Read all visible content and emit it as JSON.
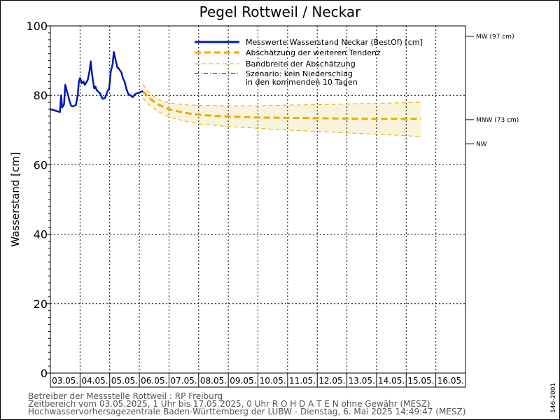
{
  "chart_data": {
    "type": "line",
    "title": "Pegel Rottweil / Neckar",
    "ylabel": "Wasserstand  [cm]",
    "ylim": [
      0,
      100
    ],
    "yticks": [
      0,
      20,
      40,
      60,
      80,
      100
    ],
    "xlim": [
      3.0,
      17.0
    ],
    "xticks": [
      "03.05.",
      "04.05.",
      "05.05.",
      "06.05.",
      "07.05.",
      "08.05.",
      "09.05.",
      "10.05.",
      "11.05.",
      "12.05.",
      "13.05.",
      "14.05.",
      "15.05.",
      "16.05."
    ],
    "grid": true,
    "legend_position": "top-right",
    "legend": [
      {
        "label": "Messwerte Wasserstand Neckar  (BestOf)  [cm]",
        "style": "solid",
        "color": "#0018b4"
      },
      {
        "label": "Abschätzung der weiteren Tendenz",
        "style": "dashed-thick",
        "color": "#f0a800"
      },
      {
        "label": "Bandbreite der Abschätzung",
        "style": "dashed-thin",
        "color": "#f0a800"
      },
      {
        "label": "Szenario: kein Niederschlag",
        "style": "dash-dot",
        "color": "#000000"
      },
      {
        "label": "in den kommenden 10 Tagen",
        "style": "none",
        "color": "#000000"
      }
    ],
    "reference_levels": [
      {
        "label": "MW (97 cm)",
        "value": 97
      },
      {
        "label": "MNW (73 cm)",
        "value": 73
      },
      {
        "label": "NW",
        "value": 66
      }
    ],
    "series": [
      {
        "name": "Messwerte Wasserstand Neckar  (BestOf)  [cm]",
        "color": "#0018b4",
        "x": [
          3.0,
          3.2,
          3.32,
          3.36,
          3.4,
          3.44,
          3.46,
          3.5,
          3.52,
          3.56,
          3.6,
          3.64,
          3.7,
          3.76,
          3.8,
          3.86,
          3.92,
          3.96,
          4.0,
          4.06,
          4.12,
          4.16,
          4.2,
          4.26,
          4.32,
          4.36,
          4.4,
          4.44,
          4.48,
          4.52,
          4.56,
          4.62,
          4.68,
          4.76,
          4.84,
          4.92,
          4.98,
          5.04,
          5.1,
          5.14,
          5.18,
          5.22,
          5.26,
          5.3,
          5.36,
          5.4,
          5.44,
          5.5,
          5.56,
          5.62,
          5.7,
          5.78,
          5.84,
          5.92,
          6.0,
          6.06,
          6.12
        ],
        "y": [
          76.0,
          75.5,
          75.2,
          80.0,
          76.5,
          77.0,
          77.5,
          83.0,
          82.5,
          81.0,
          80.0,
          78.5,
          77.0,
          76.8,
          77.0,
          77.2,
          80.0,
          84.0,
          85.0,
          83.5,
          84.0,
          83.0,
          83.5,
          84.5,
          87.0,
          89.8,
          86.5,
          84.0,
          82.0,
          82.5,
          81.5,
          81.0,
          80.5,
          79.0,
          79.2,
          81.0,
          82.0,
          87.0,
          89.0,
          92.5,
          91.0,
          89.5,
          88.0,
          87.8,
          87.0,
          86.5,
          85.0,
          84.0,
          82.0,
          80.5,
          80.0,
          79.5,
          80.2,
          80.6,
          80.8,
          81.0,
          81.2
        ]
      },
      {
        "name": "Abschätzung der weiteren Tendenz",
        "color": "#f0a800",
        "x": [
          6.12,
          6.3,
          6.6,
          7.0,
          7.5,
          8.0,
          8.5,
          9.0,
          10.0,
          11.0,
          12.0,
          13.0,
          14.0,
          15.0,
          15.5
        ],
        "y": [
          81.2,
          79.5,
          77.5,
          76.0,
          75.0,
          74.4,
          74.1,
          73.9,
          73.6,
          73.5,
          73.4,
          73.3,
          73.2,
          73.2,
          73.2
        ]
      },
      {
        "name": "Bandbreite der Abschätzung (oben)",
        "color": "#f0a800",
        "x": [
          6.12,
          6.3,
          6.6,
          7.0,
          7.5,
          8.0,
          9.0,
          10.0,
          11.0,
          12.0,
          13.0,
          14.0,
          15.0,
          15.5
        ],
        "y": [
          83.2,
          81.0,
          79.0,
          77.8,
          77.3,
          77.1,
          77.0,
          77.0,
          77.2,
          77.3,
          77.5,
          77.7,
          77.9,
          78.0
        ]
      },
      {
        "name": "Bandbreite der Abschätzung (unten)",
        "color": "#f0a800",
        "x": [
          6.12,
          6.3,
          6.6,
          7.0,
          7.5,
          8.0,
          9.0,
          10.0,
          11.0,
          12.0,
          13.0,
          14.0,
          15.0,
          15.5
        ],
        "y": [
          79.2,
          77.5,
          75.5,
          73.8,
          72.6,
          71.8,
          71.0,
          70.5,
          70.0,
          69.6,
          69.2,
          68.8,
          68.4,
          68.0
        ]
      }
    ]
  },
  "footer": {
    "line1": "Betreiber der Messstelle Rottweil : RP Freiburg",
    "line2": "Zeitbereich vom 03.05.2025, 1 Uhr bis 17.05.2025, 0 Uhr   R O H D A T E N ohne Gewähr (MESZ)",
    "line3": "Hochwasservorhersagezentrale Baden-Württemberg der LUBW - Dienstag, 6. Mai 2025 14:49:47 (MESZ)"
  },
  "side_code": "146-2001"
}
